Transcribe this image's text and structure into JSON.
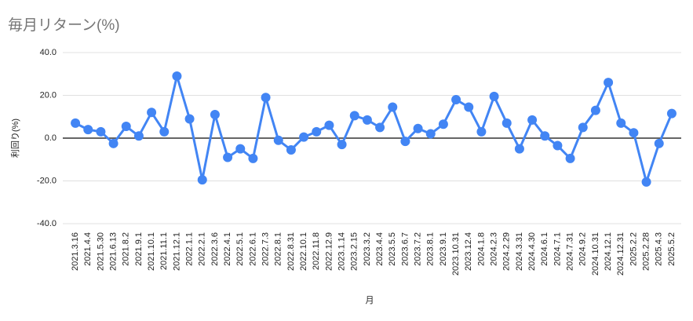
{
  "chart_data": {
    "type": "line",
    "title": "毎月リターン(%)",
    "x_label": "月",
    "y_label": "利回り(%)",
    "categories": [
      "2021.3.16",
      "2021.4.4",
      "2021.5.30",
      "2021.6.13",
      "2021.8.2",
      "2021.9.1",
      "2021.10.1",
      "2021.11.1",
      "2021.12.1",
      "2022.1.1",
      "2022.2.1",
      "2022.3.6",
      "2022.4.1",
      "2022.5.1",
      "2022.6.1",
      "2022.7.3",
      "2022.8.1",
      "2022.8.31",
      "2022.10.1",
      "2022.11.8",
      "2022.12.9",
      "2023.1.14",
      "2023.2.15",
      "2023.3.2",
      "2023.4.4",
      "2023.5.5",
      "2023.6.7",
      "2023.7.2",
      "2023.8.1",
      "2023.9.1",
      "2023.10.31",
      "2023.12.4",
      "2024.1.8",
      "2024.2.3",
      "2024.2.29",
      "2024.3.31",
      "2024.4.30",
      "2024.6.1",
      "2024.7.1",
      "2024.7.31",
      "2024.9.2",
      "2024.10.31",
      "2024.12.1",
      "2024.12.31",
      "2025.2.2",
      "2025.2.28",
      "2025.4.3",
      "2025.5.2"
    ],
    "series": [
      {
        "name": "利回り(%)",
        "color": "#4285f4",
        "values": [
          7,
          4,
          3,
          -2.5,
          5.5,
          1,
          12,
          3,
          29,
          9,
          -19.5,
          11,
          -9,
          -5,
          -9.5,
          19,
          -1,
          -5.5,
          0.5,
          3,
          6,
          -3,
          10.5,
          8.5,
          5,
          14.5,
          -1.5,
          4.5,
          2,
          6.5,
          18,
          14.5,
          3,
          19.5,
          7,
          -5,
          8.5,
          1,
          -3.5,
          -9.5,
          5,
          13,
          26,
          7,
          2.5,
          -20.5,
          -2.5,
          11.5
        ]
      }
    ],
    "ylim": [
      -40,
      40
    ],
    "yticks": [
      {
        "value": -40,
        "label": "-40.0"
      },
      {
        "value": -20,
        "label": "-20.0"
      },
      {
        "value": 0,
        "label": "0.0"
      },
      {
        "value": 20,
        "label": "20.0"
      },
      {
        "value": 40,
        "label": "40.0"
      }
    ],
    "grid": true
  }
}
